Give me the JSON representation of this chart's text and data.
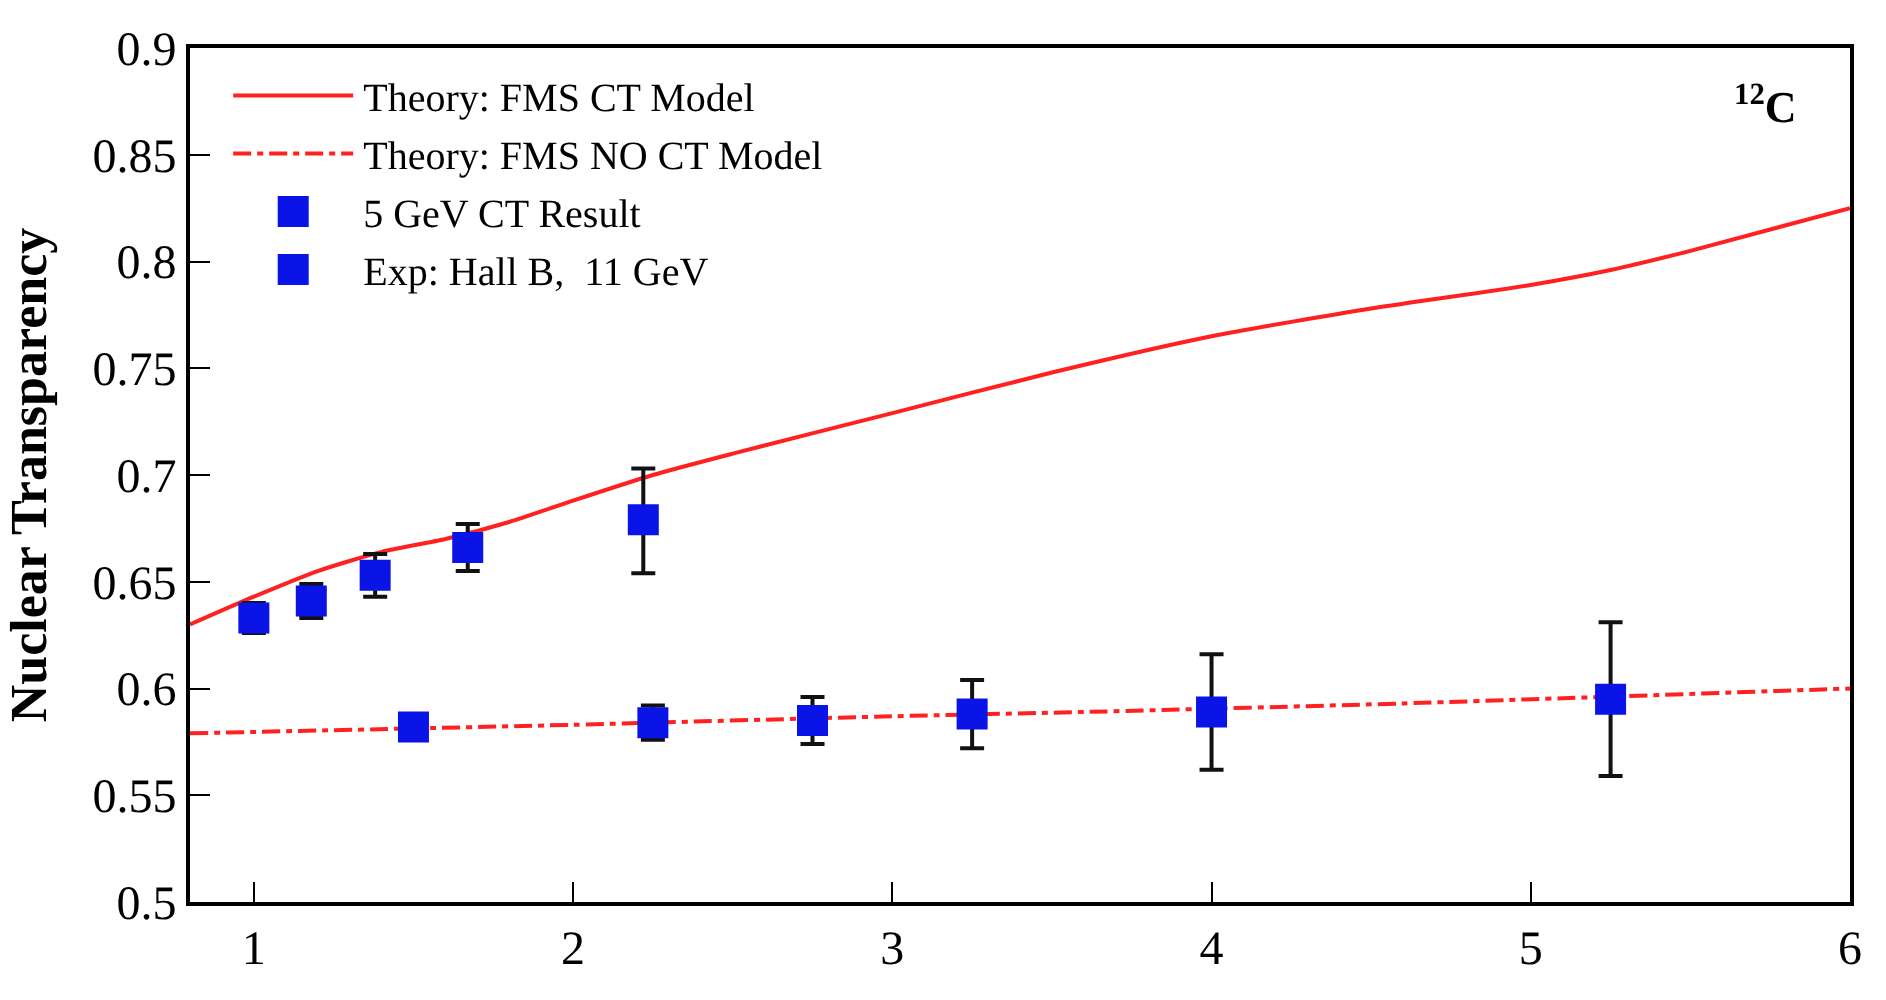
{
  "chart_data": {
    "type": "scatter",
    "ylabel": "Nuclear Transparency",
    "annotations": [
      "$^{12}$C"
    ],
    "xlim": [
      0.8,
      6
    ],
    "xticks": [
      1,
      2,
      3,
      4,
      5,
      6
    ],
    "ylim": [
      0.5,
      0.9
    ],
    "yticks": [
      0.5,
      0.55,
      0.6,
      0.65,
      0.7,
      0.75,
      0.8,
      0.85,
      0.9
    ],
    "legend": "top left",
    "series": [
      {
        "name": "Theory: FMS CT Model",
        "type": "line",
        "color": "#ff2020",
        "line_style": "solid",
        "marker": "none",
        "x": [
          0.8,
          1.0,
          1.2,
          1.4,
          1.6,
          1.8,
          2.0,
          2.25,
          2.5,
          3.0,
          3.5,
          4.0,
          4.5,
          5.0,
          5.25,
          5.5,
          6.0
        ],
        "values": [
          0.63,
          0.643,
          0.655,
          0.664,
          0.67,
          0.678,
          0.688,
          0.7,
          0.71,
          0.729,
          0.748,
          0.765,
          0.778,
          0.789,
          0.796,
          0.805,
          0.825
        ]
      },
      {
        "name": "Theory: FMS NO CT Model",
        "type": "line",
        "color": "#ff2020",
        "line_style": "dashdot",
        "marker": "none",
        "x": [
          0.8,
          2.0,
          3.0,
          3.6,
          4.6,
          6.0
        ],
        "values": [
          0.579,
          0.583,
          0.587,
          0.589,
          0.593,
          0.6
        ]
      },
      {
        "name": "5 GeV CT Result",
        "color": "#0a14e6",
        "marker": "square",
        "x": [
          1.0,
          1.18,
          1.38,
          1.67,
          2.22
        ],
        "values": [
          0.633,
          0.641,
          0.653,
          0.666,
          0.679
        ],
        "errors": [
          0.007,
          0.008,
          0.01,
          0.011,
          [
            0.654,
            0.703
          ]
        ]
      },
      {
        "name": "Exp: Hall B,  11 GeV",
        "color": "#0a14e6",
        "marker": "square",
        "x": [
          1.5,
          2.25,
          2.75,
          3.25,
          4.0,
          5.25
        ],
        "values": [
          0.582,
          0.584,
          0.585,
          0.588,
          0.589,
          0.595
        ],
        "errors": [
          null,
          0.008,
          0.011,
          0.016,
          0.027,
          0.036
        ]
      }
    ]
  }
}
